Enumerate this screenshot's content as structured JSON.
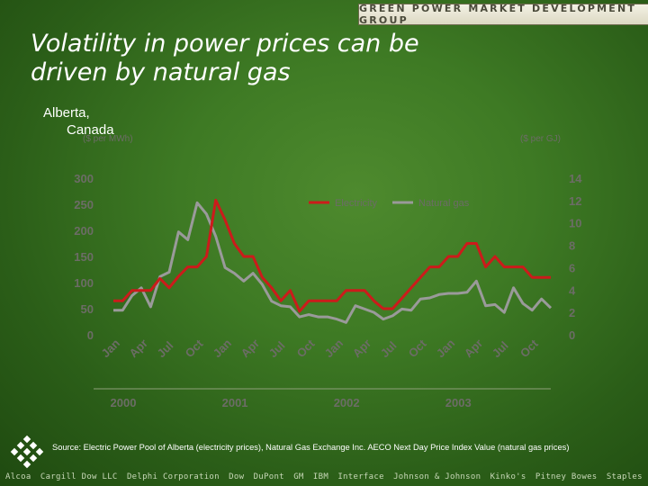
{
  "banner": "GREEN POWER MARKET DEVELOPMENT GROUP",
  "title": {
    "line1": "Volatility in power prices can be",
    "line2": "driven by natural gas"
  },
  "subtitle": {
    "line1": "Alberta,",
    "line2": "Canada"
  },
  "source": "Source:  Electric Power Pool of Alberta (electricity prices), Natural Gas Exchange Inc. AECO Next Day Price Index Value (natural gas prices)",
  "sponsors": [
    "Alcoa",
    "Cargill Dow LLC",
    "Delphi Corporation",
    "Dow",
    "DuPont",
    "GM",
    "IBM",
    "Interface",
    "Johnson & Johnson",
    "Kinko's",
    "Pitney Bowes",
    "Staples"
  ],
  "logo_icon": "green-power-lattice-icon",
  "colors": {
    "electricity": "#cc1b1b",
    "natural_gas": "#9a9a9a",
    "axis_text": "#6c6c66"
  },
  "chart_data": {
    "type": "line",
    "title": "",
    "ylabel": "($ per MWh)",
    "y2label": "($ per GJ)",
    "ylim": [
      0,
      300
    ],
    "y2lim": [
      0,
      14
    ],
    "yticks": [
      0,
      50,
      100,
      150,
      200,
      250,
      300
    ],
    "y2ticks": [
      0,
      2,
      4,
      6,
      8,
      10,
      12,
      14
    ],
    "legend_position": "top-center",
    "grid": false,
    "x_tick_labels": [
      "Jan",
      "Apr",
      "Jul",
      "Oct",
      "Jan",
      "Apr",
      "Jul",
      "Oct",
      "Jan",
      "Apr",
      "Jul",
      "Oct",
      "Jan",
      "Apr",
      "Jul",
      "Oct"
    ],
    "years": [
      "2000",
      "2001",
      "2002",
      "2003"
    ],
    "x": [
      "2000-01",
      "2000-02",
      "2000-03",
      "2000-04",
      "2000-05",
      "2000-06",
      "2000-07",
      "2000-08",
      "2000-09",
      "2000-10",
      "2000-11",
      "2000-12",
      "2001-01",
      "2001-02",
      "2001-03",
      "2001-04",
      "2001-05",
      "2001-06",
      "2001-07",
      "2001-08",
      "2001-09",
      "2001-10",
      "2001-11",
      "2001-12",
      "2002-01",
      "2002-02",
      "2002-03",
      "2002-04",
      "2002-05",
      "2002-06",
      "2002-07",
      "2002-08",
      "2002-09",
      "2002-10",
      "2002-11",
      "2002-12",
      "2003-01",
      "2003-02",
      "2003-03",
      "2003-04",
      "2003-05",
      "2003-06",
      "2003-07",
      "2003-08",
      "2003-09",
      "2003-10",
      "2003-11",
      "2003-12"
    ],
    "series": [
      {
        "name": "Electricity",
        "axis": "left",
        "values": [
          65,
          65,
          85,
          85,
          85,
          108,
          90,
          112,
          130,
          130,
          150,
          258,
          220,
          175,
          150,
          150,
          110,
          90,
          65,
          85,
          45,
          65,
          65,
          65,
          65,
          85,
          85,
          85,
          65,
          50,
          50,
          70,
          90,
          110,
          130,
          130,
          150,
          150,
          175,
          175,
          130,
          150,
          130,
          130,
          130,
          110,
          110,
          110
        ]
      },
      {
        "name": "Natural gas",
        "axis": "right",
        "values": [
          2.2,
          2.2,
          3.5,
          4.2,
          2.5,
          5.2,
          5.6,
          9.2,
          8.5,
          11.8,
          10.8,
          8.8,
          6.0,
          5.5,
          4.8,
          5.5,
          4.5,
          3.0,
          2.6,
          2.5,
          1.6,
          1.8,
          1.6,
          1.6,
          1.4,
          1.1,
          2.6,
          2.3,
          2.0,
          1.4,
          1.7,
          2.3,
          2.2,
          3.2,
          3.3,
          3.6,
          3.7,
          3.7,
          3.8,
          4.8,
          2.6,
          2.7,
          2.0,
          4.2,
          2.8,
          2.2,
          3.2,
          2.4
        ]
      }
    ]
  }
}
